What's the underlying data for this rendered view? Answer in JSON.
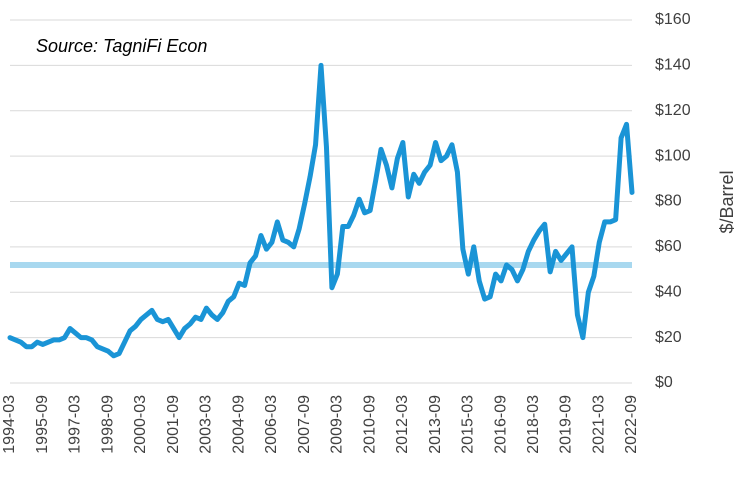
{
  "chart_data": {
    "type": "line",
    "annotation": "Source: TagniFi Econ",
    "y_label": "$/Barrel",
    "categories": [
      "1994-03",
      null,
      null,
      null,
      null,
      null,
      "1995-09",
      null,
      null,
      null,
      null,
      null,
      "1997-03",
      null,
      null,
      null,
      null,
      null,
      "1998-09",
      null,
      null,
      null,
      null,
      null,
      "2000-03",
      null,
      null,
      null,
      null,
      null,
      "2001-09",
      null,
      null,
      null,
      null,
      null,
      "2003-03",
      null,
      null,
      null,
      null,
      null,
      "2004-09",
      null,
      null,
      null,
      null,
      null,
      "2006-03",
      null,
      null,
      null,
      null,
      null,
      "2007-09",
      null,
      null,
      null,
      null,
      null,
      "2009-03",
      null,
      null,
      null,
      null,
      null,
      "2010-09",
      null,
      null,
      null,
      null,
      null,
      "2012-03",
      null,
      null,
      null,
      null,
      null,
      "2013-09",
      null,
      null,
      null,
      null,
      null,
      "2015-03",
      null,
      null,
      null,
      null,
      null,
      "2016-09",
      null,
      null,
      null,
      null,
      null,
      "2018-03",
      null,
      null,
      null,
      null,
      null,
      "2019-09",
      null,
      null,
      null,
      null,
      null,
      "2021-03",
      null,
      null,
      null,
      null,
      null,
      "2022-09"
    ],
    "series": [
      {
        "color": "#1a94d6",
        "values": [
          20,
          19,
          18,
          16,
          16,
          18,
          17,
          18,
          19,
          19,
          20,
          24,
          22,
          20,
          20,
          19,
          16,
          15,
          14,
          12,
          13,
          18,
          23,
          25,
          28,
          30,
          32,
          28,
          27,
          28,
          24,
          20,
          24,
          26,
          29,
          28,
          33,
          30,
          28,
          31,
          36,
          38,
          44,
          43,
          53,
          56,
          65,
          59,
          62,
          71,
          63,
          62,
          60,
          68,
          79,
          91,
          105,
          140,
          104,
          42,
          48,
          69,
          69,
          74,
          81,
          75,
          76,
          89,
          103,
          96,
          86,
          99,
          106,
          82,
          92,
          88,
          93,
          96,
          106,
          98,
          100,
          105,
          93,
          59,
          48,
          60,
          45,
          37,
          38,
          48,
          45,
          52,
          50,
          45,
          50,
          58,
          63,
          67,
          70,
          49,
          58,
          54,
          57,
          60,
          30,
          20,
          40,
          47,
          62,
          71,
          71,
          72,
          108,
          114,
          84
        ]
      }
    ],
    "reference_line": {
      "value": 52,
      "color": "#a8d8ef"
    },
    "ylim": [
      0,
      160
    ],
    "yticks": [
      {
        "value": 0,
        "label": "$0"
      },
      {
        "value": 20,
        "label": "$20"
      },
      {
        "value": 40,
        "label": "$40"
      },
      {
        "value": 60,
        "label": "$60"
      },
      {
        "value": 80,
        "label": "$80"
      },
      {
        "value": 100,
        "label": "$100"
      },
      {
        "value": 120,
        "label": "$120"
      },
      {
        "value": 140,
        "label": "$140"
      },
      {
        "value": 160,
        "label": "$160"
      }
    ],
    "grid": true
  }
}
